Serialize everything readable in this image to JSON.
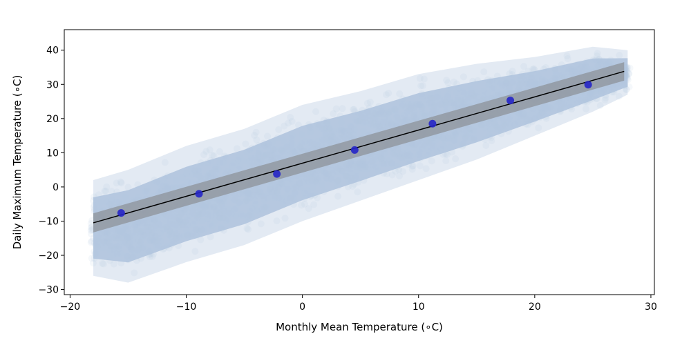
{
  "chart_data": {
    "type": "scatter",
    "title": "",
    "xlabel": "Monthly Mean Temperature (∘C)",
    "ylabel": "Daily Maximum Temperature (∘C)",
    "xlim": [
      -20.5,
      30.3
    ],
    "ylim": [
      -31.5,
      46
    ],
    "xticks": [
      -20,
      -10,
      0,
      10,
      20,
      30
    ],
    "yticks": [
      -30,
      -20,
      -10,
      0,
      10,
      20,
      30,
      40
    ],
    "grid": false,
    "legend": "none",
    "colors": {
      "cloud": "#b0c4de",
      "band": "#808080",
      "fit_line": "#000000",
      "mean_points": "#2525c8"
    },
    "scatter_cloud": {
      "description_of_spread": "dense cloud of daily values",
      "x_range": [
        -18.2,
        28.2
      ],
      "upper_edge": [
        [
          -18,
          2
        ],
        [
          -15,
          5
        ],
        [
          -10,
          12
        ],
        [
          -5,
          17
        ],
        [
          0,
          24
        ],
        [
          5,
          28
        ],
        [
          10,
          33
        ],
        [
          15,
          36
        ],
        [
          20,
          38
        ],
        [
          25,
          41
        ],
        [
          28,
          40
        ]
      ],
      "lower_edge": [
        [
          -18,
          -26
        ],
        [
          -15,
          -28
        ],
        [
          -10,
          -22
        ],
        [
          -5,
          -17
        ],
        [
          0,
          -10
        ],
        [
          5,
          -4
        ],
        [
          10,
          2
        ],
        [
          15,
          8
        ],
        [
          20,
          15
        ],
        [
          25,
          22
        ],
        [
          28,
          27
        ]
      ]
    },
    "fit_line": {
      "x": [
        -18,
        27.7
      ],
      "y": [
        -10.5,
        33.8
      ]
    },
    "confidence_band": {
      "x": [
        -18,
        27.7
      ],
      "upper": [
        -7.7,
        36.5
      ],
      "lower": [
        -13.3,
        31.1
      ]
    },
    "mean_points": {
      "x": [
        -15.6,
        -8.9,
        -2.2,
        4.5,
        11.2,
        17.9,
        24.6
      ],
      "y": [
        -7.6,
        -2.0,
        3.8,
        10.8,
        18.5,
        25.3,
        29.9
      ]
    }
  }
}
